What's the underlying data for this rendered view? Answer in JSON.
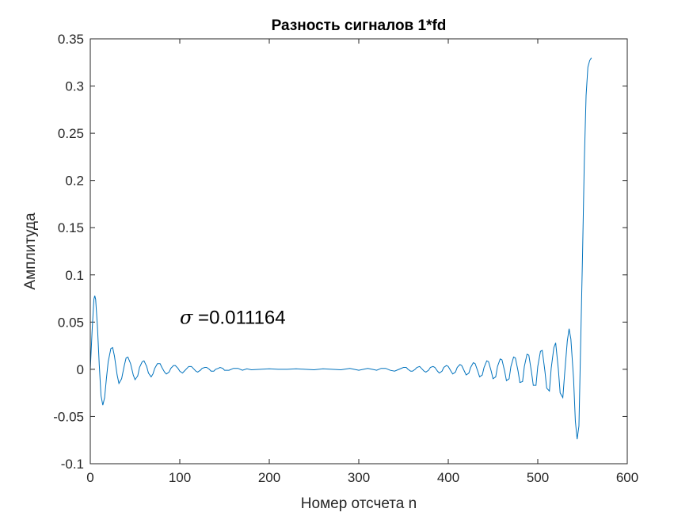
{
  "chart_data": {
    "type": "line",
    "title": "Разность сигналов 1*fd",
    "xlabel": "Номер отсчета n",
    "ylabel": "Амплитуда",
    "xlim": [
      0,
      600
    ],
    "ylim": [
      -0.1,
      0.35
    ],
    "xticks": [
      0,
      100,
      200,
      300,
      400,
      500,
      600
    ],
    "xtick_labels": [
      "0",
      "100",
      "200",
      "300",
      "400",
      "500",
      "600"
    ],
    "yticks": [
      -0.1,
      -0.05,
      0,
      0.05,
      0.1,
      0.15,
      0.2,
      0.25,
      0.3,
      0.35
    ],
    "ytick_labels": [
      "-0.1",
      "-0.05",
      "0",
      "0.05",
      "0.1",
      "0.15",
      "0.2",
      "0.25",
      "0.3",
      "0.35"
    ],
    "grid": false,
    "line_color": "#0072BD",
    "annotation": {
      "symbol": "σ",
      "text": " =0.011164",
      "x": 100,
      "y": 0.055
    },
    "series": [
      {
        "x": [
          0,
          2,
          4,
          5,
          6,
          8,
          10,
          12,
          14,
          16,
          18,
          20,
          23,
          25,
          27,
          30,
          32,
          35,
          38,
          40,
          42,
          45,
          48,
          50,
          53,
          55,
          58,
          60,
          63,
          65,
          68,
          70,
          72,
          75,
          78,
          80,
          83,
          85,
          88,
          90,
          93,
          95,
          98,
          100,
          103,
          105,
          108,
          110,
          113,
          115,
          118,
          120,
          123,
          125,
          128,
          130,
          133,
          135,
          138,
          140,
          143,
          145,
          148,
          150,
          155,
          160,
          165,
          170,
          175,
          180,
          190,
          200,
          210,
          220,
          230,
          240,
          250,
          260,
          270,
          280,
          290,
          300,
          310,
          315,
          320,
          325,
          330,
          335,
          340,
          345,
          350,
          353,
          355,
          358,
          360,
          363,
          365,
          368,
          370,
          373,
          375,
          378,
          380,
          383,
          385,
          388,
          390,
          393,
          395,
          398,
          400,
          403,
          405,
          408,
          410,
          413,
          415,
          418,
          420,
          423,
          425,
          428,
          430,
          433,
          435,
          438,
          440,
          443,
          445,
          448,
          450,
          453,
          455,
          458,
          460,
          463,
          465,
          468,
          470,
          473,
          475,
          478,
          480,
          483,
          485,
          488,
          490,
          493,
          495,
          498,
          500,
          503,
          505,
          508,
          510,
          513,
          515,
          518,
          520,
          523,
          525,
          528,
          530,
          533,
          535,
          537,
          540,
          542,
          544,
          546,
          548,
          550,
          552,
          554,
          556,
          558,
          560
        ],
        "y": [
          0,
          0.04,
          0.074,
          0.078,
          0.074,
          0.045,
          0.005,
          -0.028,
          -0.038,
          -0.03,
          -0.01,
          0.008,
          0.022,
          0.023,
          0.014,
          -0.006,
          -0.015,
          -0.01,
          0.004,
          0.012,
          0.013,
          0.006,
          -0.006,
          -0.011,
          -0.007,
          0.002,
          0.008,
          0.009,
          0.003,
          -0.004,
          -0.008,
          -0.005,
          0.001,
          0.006,
          0.006,
          0.002,
          -0.003,
          -0.005,
          -0.003,
          0.001,
          0.004,
          0.004,
          0.001,
          -0.002,
          -0.004,
          -0.002,
          0.001,
          0.003,
          0.003,
          0.001,
          -0.002,
          -0.003,
          -0.001,
          0.001,
          0.002,
          0.002,
          0,
          -0.002,
          -0.002,
          0,
          0.001,
          0.002,
          0.001,
          -0.001,
          -0.001,
          0.001,
          0.001,
          -0.001,
          0.0005,
          -0.0005,
          0,
          0.0005,
          0,
          0,
          0.0005,
          0,
          -0.0005,
          0.0005,
          0,
          -0.0005,
          0.001,
          -0.001,
          0.001,
          0,
          -0.001,
          0.001,
          0.001,
          -0.001,
          -0.002,
          0,
          0.002,
          0.002,
          0,
          -0.002,
          -0.002,
          0,
          0.002,
          0.003,
          0.001,
          -0.002,
          -0.003,
          -0.001,
          0.002,
          0.003,
          0.002,
          -0.002,
          -0.004,
          -0.002,
          0.002,
          0.004,
          0.003,
          -0.002,
          -0.005,
          -0.003,
          0.002,
          0.005,
          0.004,
          -0.002,
          -0.006,
          -0.004,
          0.002,
          0.007,
          0.006,
          -0.002,
          -0.008,
          -0.006,
          0.002,
          0.009,
          0.008,
          -0.002,
          -0.01,
          -0.008,
          0.003,
          0.011,
          0.01,
          -0.002,
          -0.012,
          -0.01,
          0.003,
          0.013,
          0.012,
          -0.002,
          -0.014,
          -0.013,
          0.003,
          0.016,
          0.015,
          -0.003,
          -0.017,
          -0.017,
          0.003,
          0.019,
          0.02,
          -0.002,
          -0.02,
          -0.023,
          0.001,
          0.023,
          0.028,
          0,
          -0.025,
          -0.03,
          -0.005,
          0.03,
          0.043,
          0.032,
          -0.01,
          -0.055,
          -0.074,
          -0.06,
          0.03,
          0.12,
          0.22,
          0.29,
          0.32,
          0.327,
          0.33
        ]
      }
    ]
  }
}
